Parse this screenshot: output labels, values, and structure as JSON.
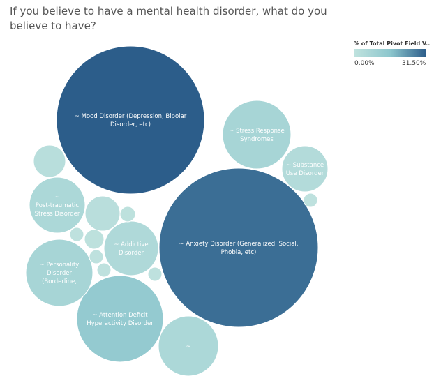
{
  "title": "If you believe to have a mental health disorder, what do you believe to have?",
  "legend": {
    "title": "% of Total Pivot Field V..",
    "min": "0.00%",
    "max": "31.50%",
    "color_low": "#bfe2de",
    "color_high": "#2c5d8a"
  },
  "chart_data": {
    "type": "packed-bubble",
    "title": "If you believe to have a mental health disorder, what do you believe to have?",
    "color_metric": "% of Total Pivot Field V..",
    "color_range": [
      0,
      31.5
    ],
    "series": [
      {
        "label": "~ Mood Disorder (Depression, Bipolar Disorder, etc)",
        "value": 31.5
      },
      {
        "label": "~ Anxiety Disorder (Generalized, Social, Phobia, etc)",
        "value": 28.0
      },
      {
        "label": "~ Attention Deficit Hyperactivity Disorder",
        "value": 8.0
      },
      {
        "label": "~ Stress Response Syndromes",
        "value": 4.5
      },
      {
        "label": "~ Personality Disorder (Borderline,",
        "value": 4.5
      },
      {
        "label": "~ Post-traumatic Stress Disorder",
        "value": 3.5
      },
      {
        "label": "~",
        "value": 3.5
      },
      {
        "label": "~ Addictive Disorder",
        "value": 3.0
      },
      {
        "label": "~ Substance Use Disorder",
        "value": 2.2
      },
      {
        "label": "",
        "value": 1.3
      },
      {
        "label": "",
        "value": 1.2
      },
      {
        "label": "",
        "value": 0.4
      },
      {
        "label": "",
        "value": 0.3
      },
      {
        "label": "",
        "value": 0.2
      },
      {
        "label": "",
        "value": 0.2
      },
      {
        "label": "",
        "value": 0.2
      },
      {
        "label": "",
        "value": 0.2
      },
      {
        "label": "",
        "value": 0.2
      }
    ]
  }
}
